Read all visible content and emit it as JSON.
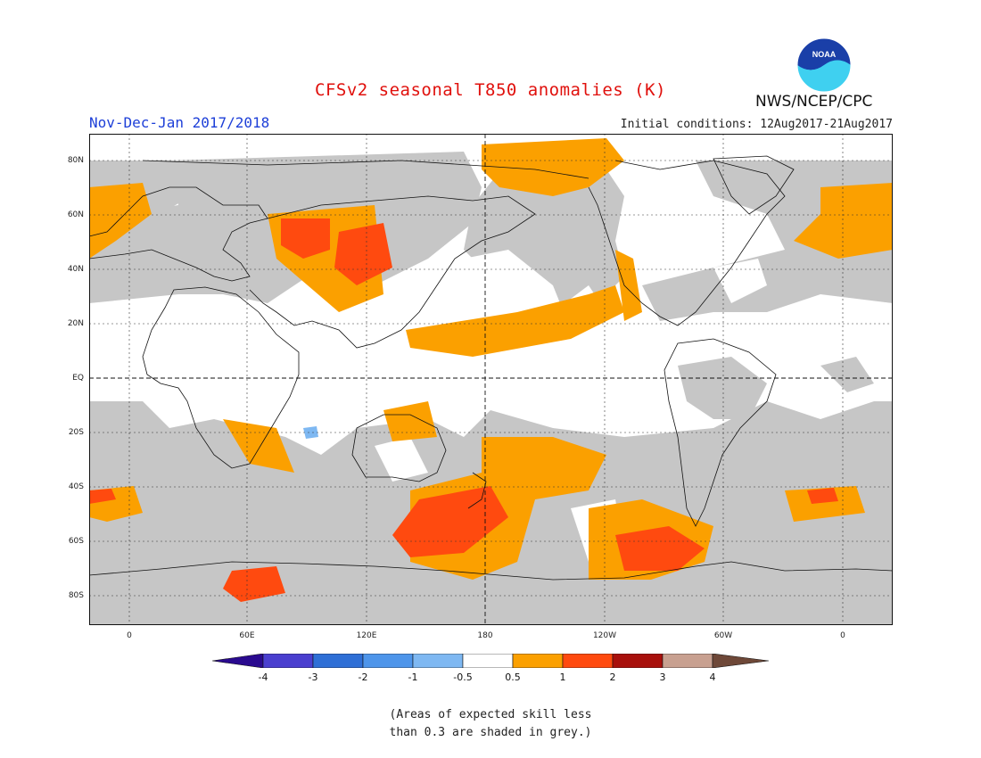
{
  "title": "CFSv2 seasonal T850 anomalies (K)",
  "season": "Nov-Dec-Jan 2017/2018",
  "initial_conditions": "Initial conditions: 12Aug2017-21Aug2017",
  "agency": "NWS/NCEP/CPC",
  "logo_text": "NOAA",
  "lat_labels": [
    "80N",
    "60N",
    "40N",
    "20N",
    "EQ",
    "20S",
    "40S",
    "60S",
    "80S"
  ],
  "lon_labels": [
    "0",
    "60E",
    "120E",
    "180",
    "120W",
    "60W",
    "0"
  ],
  "colorbar": {
    "ticks": [
      "-4",
      "-3",
      "-2",
      "-1",
      "-0.5",
      "0.5",
      "1",
      "2",
      "3",
      "4"
    ],
    "colors": [
      "#2a0a8f",
      "#4a3fcf",
      "#2f6fd6",
      "#4e95ea",
      "#7eb8f2",
      "#ffffff",
      "#fba000",
      "#ff4a0f",
      "#a8100c",
      "#c8a090",
      "#6e4838"
    ]
  },
  "note_lines": [
    "(Areas of expected skill less",
    "than 0.3 are shaded in grey.)"
  ],
  "map_colors": {
    "grey": "#c6c6c6",
    "orange": "#fba000",
    "red": "#ff4a0f",
    "blue": "#7eb8f2"
  }
}
